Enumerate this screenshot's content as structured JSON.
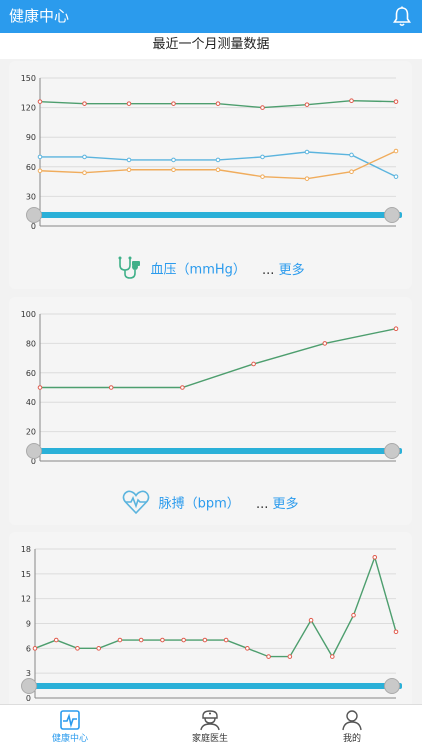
{
  "appbar": {
    "title": "健康中心",
    "icon": "bell-icon"
  },
  "subtitle": "最近一个月测量数据",
  "colors": {
    "primary": "#2b9bed",
    "green": "#4d9e6e",
    "blue": "#5bb4de",
    "orange": "#f0ac5c",
    "point": "#e05a4c"
  },
  "cards": [
    {
      "label": "血压（mmHg）",
      "more_prefix": "...",
      "more_label": "更多",
      "icon": "stethoscope-icon",
      "chart_data": {
        "type": "line",
        "ylim": [
          0,
          150
        ],
        "yticks": [
          "0",
          "30",
          "60",
          "90",
          "120",
          "150"
        ],
        "series": [
          {
            "values": [
              126,
              124,
              124,
              124,
              124,
              120,
              123,
              127,
              126
            ]
          },
          {
            "values": [
              70,
              70,
              67,
              67,
              67,
              70,
              75,
              72,
              50
            ]
          },
          {
            "values": [
              56,
              54,
              57,
              57,
              57,
              50,
              48,
              55,
              76
            ]
          }
        ]
      }
    },
    {
      "label": "脉搏（bpm）",
      "more_prefix": "...",
      "more_label": "更多",
      "icon": "heart-pulse-icon",
      "chart_data": {
        "type": "line",
        "ylim": [
          0,
          100
        ],
        "yticks": [
          "0",
          "20",
          "40",
          "60",
          "80",
          "100"
        ],
        "series": [
          {
            "values": [
              50,
              50,
              50,
              66,
              80,
              90
            ]
          }
        ]
      }
    },
    {
      "label": "",
      "more_prefix": "",
      "more_label": "",
      "icon": "",
      "chart_data": {
        "type": "line",
        "ylim": [
          0,
          18
        ],
        "yticks": [
          "0",
          "3",
          "6",
          "9",
          "12",
          "15",
          "18"
        ],
        "series": [
          {
            "values": [
              6,
              7,
              6,
              6,
              7,
              7,
              7,
              7,
              7,
              7,
              6,
              5,
              5,
              9.4,
              5,
              10,
              17,
              8
            ]
          }
        ]
      }
    }
  ],
  "tabs": [
    {
      "label": "健康中心",
      "icon": "health-monitor-icon",
      "active": true
    },
    {
      "label": "家庭医生",
      "icon": "doctor-icon",
      "active": false
    },
    {
      "label": "我的",
      "icon": "user-icon",
      "active": false
    }
  ]
}
